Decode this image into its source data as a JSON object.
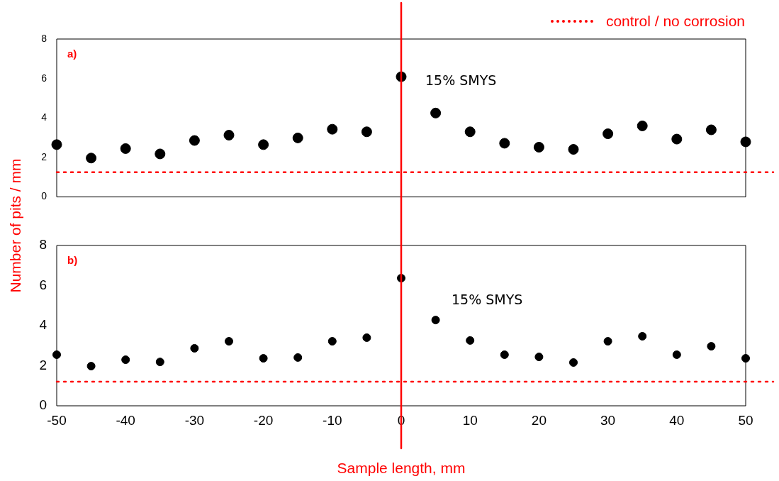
{
  "chart_data": [
    {
      "type": "scatter",
      "ylabel": "Number of pits / mm",
      "annotations": [
        "a)",
        "15% SMYS"
      ],
      "x": [
        -50,
        -45,
        -40,
        -35,
        -30,
        -25,
        -20,
        -15,
        -10,
        -5,
        0,
        5,
        10,
        15,
        20,
        25,
        30,
        35,
        40,
        45,
        50
      ],
      "series": [
        {
          "color": "#000000",
          "values": [
            2.65,
            1.97,
            2.45,
            2.18,
            2.86,
            3.13,
            2.65,
            2.99,
            3.43,
            3.3,
            6.09,
            4.25,
            3.3,
            2.72,
            2.52,
            2.41,
            3.2,
            3.6,
            2.93,
            3.4,
            2.79
          ]
        }
      ],
      "xlim": [
        -50,
        50
      ],
      "ylim": [
        0,
        8
      ],
      "yticks": [
        0,
        2,
        4,
        6,
        8
      ],
      "tick_labels": "y",
      "grid": false,
      "marker": "circle",
      "legend": "top right",
      "ref_lines": [
        {
          "axis": "x",
          "value": 0,
          "color": "#ff0000",
          "line_style": "solid"
        },
        {
          "axis": "y",
          "value": 1.25,
          "color": "#ff0000",
          "line_style": "dotted",
          "label": "control / no corrosion"
        }
      ]
    },
    {
      "type": "scatter",
      "xlabel": "Sample length, mm",
      "annotations": [
        "b)",
        "15% SMYS"
      ],
      "x": [
        -50,
        -45,
        -40,
        -35,
        -30,
        -25,
        -20,
        -15,
        -10,
        -5,
        0,
        5,
        10,
        15,
        20,
        25,
        30,
        35,
        40,
        45,
        50
      ],
      "series": [
        {
          "color": "#000000",
          "values": [
            2.55,
            1.98,
            2.3,
            2.19,
            2.87,
            3.22,
            2.37,
            2.41,
            3.22,
            3.4,
            6.37,
            4.28,
            3.26,
            2.55,
            2.44,
            2.16,
            3.22,
            3.47,
            2.55,
            2.97,
            2.37
          ]
        }
      ],
      "xlim": [
        -50,
        50
      ],
      "xticks": [
        -50,
        -40,
        -30,
        -20,
        -10,
        0,
        10,
        20,
        30,
        40,
        50
      ],
      "ylim": [
        0,
        8
      ],
      "yticks": [
        0,
        2,
        4,
        6,
        8
      ],
      "grid": false,
      "marker": "circle",
      "ref_lines": [
        {
          "axis": "x",
          "value": 0,
          "color": "#ff0000",
          "line_style": "solid"
        },
        {
          "axis": "y",
          "value": 1.2,
          "color": "#ff0000",
          "line_style": "dotted"
        }
      ]
    }
  ]
}
